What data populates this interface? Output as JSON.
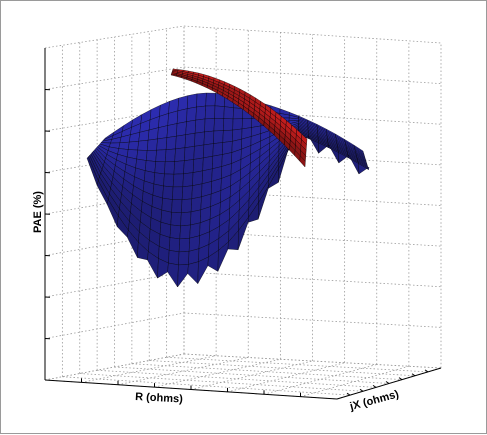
{
  "chart_data": {
    "type": "surface",
    "title": "",
    "xlabel": "R (ohms)",
    "ylabel": "jX (ohms)",
    "zlabel": "PAE (%)",
    "grid": true,
    "tick_labels_visible": false,
    "series": [
      {
        "color": "#24248f",
        "edge_color": "#000000"
      },
      {
        "color": "#a01818",
        "edge_color": "#000000"
      }
    ]
  }
}
